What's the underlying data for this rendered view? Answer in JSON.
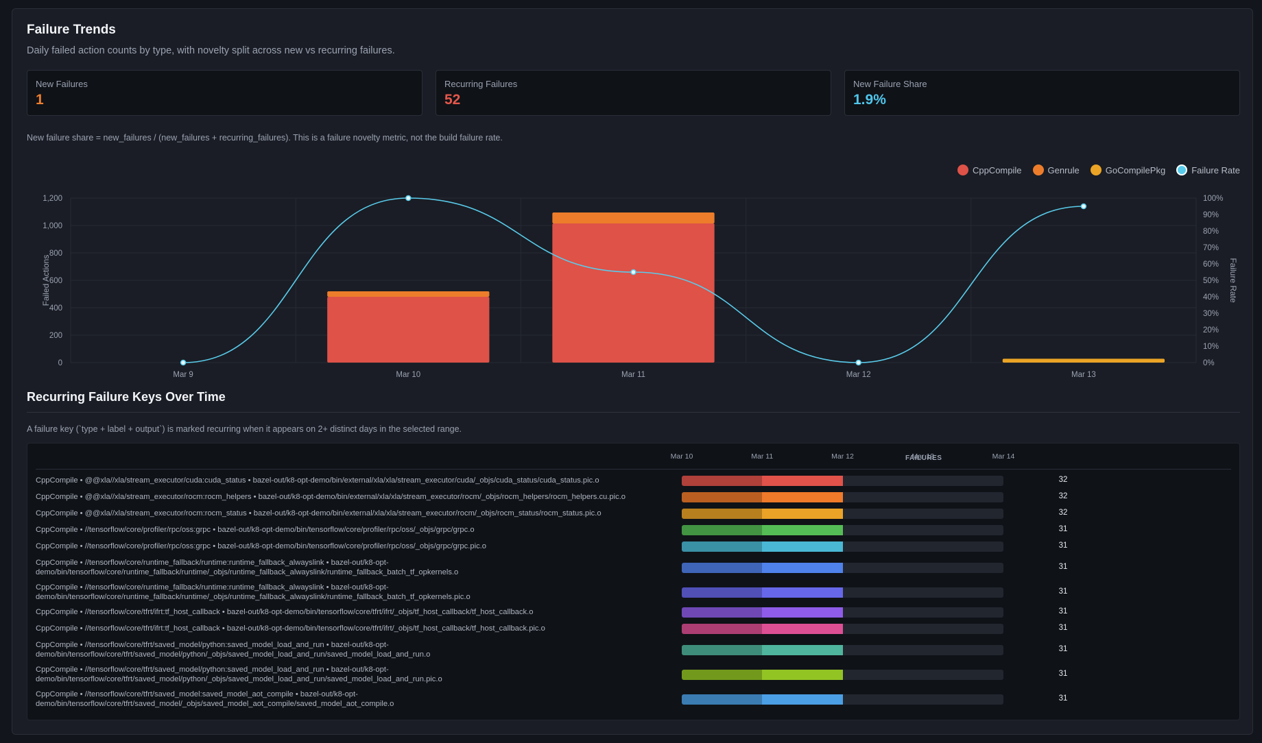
{
  "header": {
    "title": "Failure Trends",
    "subtitle": "Daily failed action counts by type, with novelty split across new vs recurring failures."
  },
  "stats": [
    {
      "label": "New Failures",
      "value": "1",
      "color": "#ef7f2e"
    },
    {
      "label": "Recurring Failures",
      "value": "52",
      "color": "#e4574b"
    },
    {
      "label": "New Failure Share",
      "value": "1.9%",
      "color": "#4fc6ec"
    }
  ],
  "note": "New failure share = new_failures / (new_failures + recurring_failures). This is a failure novelty metric, not the build failure rate.",
  "chart_data": {
    "type": "bar",
    "categories": [
      "Mar 9",
      "Mar 10",
      "Mar 11",
      "Mar 12",
      "Mar 13"
    ],
    "series": [
      {
        "name": "CppCompile",
        "color": "#de5248",
        "values": [
          0,
          480,
          1015,
          0,
          0
        ]
      },
      {
        "name": "Genrule",
        "color": "#ed7d2b",
        "values": [
          0,
          40,
          80,
          0,
          0
        ]
      },
      {
        "name": "GoCompilePkg",
        "color": "#eba426",
        "values": [
          0,
          0,
          0,
          0,
          28
        ]
      }
    ],
    "line_series": {
      "name": "Failure Rate",
      "color": "#59ccec",
      "values": [
        0,
        100,
        55,
        0,
        95
      ],
      "unit": "%"
    },
    "ylabel": "Failed Actions",
    "y2label": "Failure Rate",
    "ylim": [
      0,
      1200
    ],
    "y2lim": [
      0,
      100
    ],
    "yticks": [
      "0",
      "200",
      "400",
      "600",
      "800",
      "1,000",
      "1,200"
    ],
    "y2ticks": [
      "0%",
      "10%",
      "20%",
      "30%",
      "40%",
      "50%",
      "60%",
      "70%",
      "80%",
      "90%",
      "100%"
    ],
    "grid": true,
    "legend": "top-right"
  },
  "recurring": {
    "title": "Recurring Failure Keys Over Time",
    "note": "A failure key (`type + label + output`) is marked recurring when it appears on 2+ distinct days in the selected range.",
    "days": [
      "Mar 10",
      "Mar 11",
      "Mar 12",
      "Mar 13",
      "Mar 14"
    ],
    "failures_header": "FAILURES",
    "rows": [
      {
        "label": "CppCompile • @@xla//xla/stream_executor/cuda:cuda_status • bazel-out/k8-opt-demo/bin/external/xla/xla/stream_executor/cuda/_objs/cuda_status/cuda_status.pic.o",
        "failures": "32",
        "color": "#e0524a",
        "active_days": [
          0,
          1
        ]
      },
      {
        "label": "CppCompile • @@xla//xla/stream_executor/rocm:rocm_helpers • bazel-out/k8-opt-demo/bin/external/xla/xla/stream_executor/rocm/_objs/rocm_helpers/rocm_helpers.cu.pic.o",
        "failures": "32",
        "color": "#ee7a2a",
        "active_days": [
          0,
          1
        ]
      },
      {
        "label": "CppCompile • @@xla//xla/stream_executor/rocm:rocm_status • bazel-out/k8-opt-demo/bin/external/xla/xla/stream_executor/rocm/_objs/rocm_status/rocm_status.pic.o",
        "failures": "32",
        "color": "#eaa326",
        "active_days": [
          0,
          1
        ]
      },
      {
        "label": "CppCompile • //tensorflow/core/profiler/rpc/oss:grpc • bazel-out/k8-opt-demo/bin/tensorflow/core/profiler/rpc/oss/_objs/grpc/grpc.o",
        "failures": "31",
        "color": "#55bd55",
        "active_days": [
          0,
          1
        ]
      },
      {
        "label": "CppCompile • //tensorflow/core/profiler/rpc/oss:grpc • bazel-out/k8-opt-demo/bin/tensorflow/core/profiler/rpc/oss/_objs/grpc/grpc.pic.o",
        "failures": "31",
        "color": "#4ab8d4",
        "active_days": [
          0,
          1
        ]
      },
      {
        "label": "CppCompile • //tensorflow/core/runtime_fallback/runtime:runtime_fallback_alwayslink • bazel-out/k8-opt-demo/bin/tensorflow/core/runtime_fallback/runtime/_objs/runtime_fallback_alwayslink/runtime_fallback_batch_tf_opkernels.o",
        "failures": "31",
        "color": "#4f82ea",
        "active_days": [
          0,
          1
        ]
      },
      {
        "label": "CppCompile • //tensorflow/core/runtime_fallback/runtime:runtime_fallback_alwayslink • bazel-out/k8-opt-demo/bin/tensorflow/core/runtime_fallback/runtime/_objs/runtime_fallback_alwayslink/runtime_fallback_batch_tf_opkernels.pic.o",
        "failures": "31",
        "color": "#6767ea",
        "active_days": [
          0,
          1
        ]
      },
      {
        "label": "CppCompile • //tensorflow/core/tfrt/ifrt:tf_host_callback • bazel-out/k8-opt-demo/bin/tensorflow/core/tfrt/ifrt/_objs/tf_host_callback/tf_host_callback.o",
        "failures": "31",
        "color": "#8e5ce8",
        "active_days": [
          0,
          1
        ]
      },
      {
        "label": "CppCompile • //tensorflow/core/tfrt/ifrt:tf_host_callback • bazel-out/k8-opt-demo/bin/tensorflow/core/tfrt/ifrt/_objs/tf_host_callback/tf_host_callback.pic.o",
        "failures": "31",
        "color": "#dd4f93",
        "active_days": [
          0,
          1
        ]
      },
      {
        "label": "CppCompile • //tensorflow/core/tfrt/saved_model/python:saved_model_load_and_run • bazel-out/k8-opt-demo/bin/tensorflow/core/tfrt/saved_model/python/_objs/saved_model_load_and_run/saved_model_load_and_run.o",
        "failures": "31",
        "color": "#4fb59d",
        "active_days": [
          0,
          1
        ]
      },
      {
        "label": "CppCompile • //tensorflow/core/tfrt/saved_model/python:saved_model_load_and_run • bazel-out/k8-opt-demo/bin/tensorflow/core/tfrt/saved_model/python/_objs/saved_model_load_and_run/saved_model_load_and_run.pic.o",
        "failures": "31",
        "color": "#92c424",
        "active_days": [
          0,
          1
        ]
      },
      {
        "label": "CppCompile • //tensorflow/core/tfrt/saved_model:saved_model_aot_compile • bazel-out/k8-opt-demo/bin/tensorflow/core/tfrt/saved_model/_objs/saved_model_aot_compile/saved_model_aot_compile.o",
        "failures": "31",
        "color": "#4b9fe4",
        "active_days": [
          0,
          1
        ]
      }
    ]
  }
}
